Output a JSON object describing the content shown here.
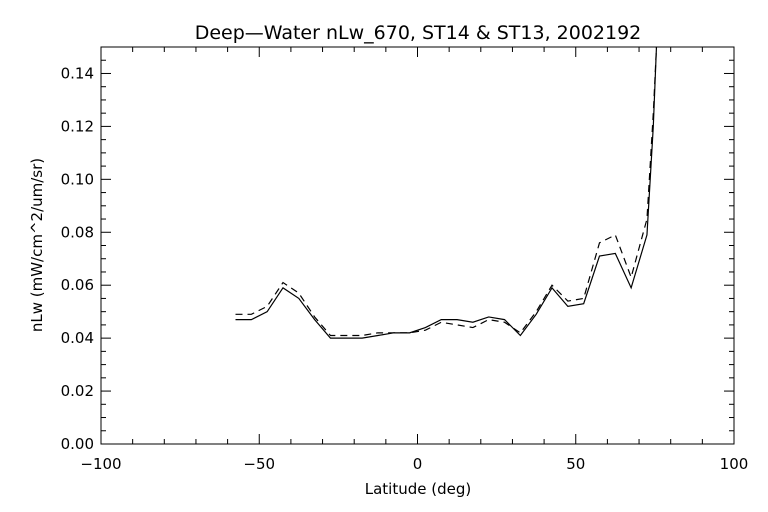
{
  "chart_data": {
    "type": "line",
    "title": "Deep—Water nLw_670, ST14 & ST13, 2002192",
    "xlabel": "Latitude (deg)",
    "ylabel": "nLw (mW/cm^2/um/sr)",
    "xlim": [
      -100,
      100
    ],
    "ylim": [
      0.0,
      0.15
    ],
    "xticks": [
      -100,
      -50,
      0,
      50,
      100
    ],
    "xtick_labels": [
      "−100",
      "−50",
      "0",
      "50",
      "100"
    ],
    "yticks": [
      0.0,
      0.02,
      0.04,
      0.06,
      0.08,
      0.1,
      0.12,
      0.14
    ],
    "ytick_labels": [
      "0.00",
      "0.02",
      "0.04",
      "0.06",
      "0.08",
      "0.10",
      "0.12",
      "0.14"
    ],
    "grid": false,
    "series": [
      {
        "style": "solid",
        "x": [
          -57.5,
          -52.5,
          -47.5,
          -42.5,
          -37.5,
          -32.5,
          -27.5,
          -22.5,
          -17.5,
          -12.5,
          -7.5,
          -2.5,
          2.5,
          7.5,
          12.5,
          17.5,
          22.5,
          27.5,
          32.5,
          37.5,
          42.5,
          47.5,
          52.5,
          57.5,
          62.5,
          67.5,
          72.5,
          74.5,
          75.5
        ],
        "y": [
          0.047,
          0.047,
          0.05,
          0.059,
          0.055,
          0.047,
          0.04,
          0.04,
          0.04,
          0.041,
          0.042,
          0.042,
          0.044,
          0.047,
          0.047,
          0.046,
          0.048,
          0.047,
          0.041,
          0.049,
          0.059,
          0.052,
          0.053,
          0.071,
          0.072,
          0.059,
          0.079,
          0.12,
          0.15
        ]
      },
      {
        "style": "dashed",
        "x": [
          -57.5,
          -52.5,
          -47.5,
          -42.5,
          -37.5,
          -32.5,
          -27.5,
          -22.5,
          -17.5,
          -12.5,
          -7.5,
          -2.5,
          2.5,
          7.5,
          12.5,
          17.5,
          22.5,
          27.5,
          32.5,
          37.5,
          42.5,
          47.5,
          52.5,
          57.5,
          62.5,
          67.5,
          72.5,
          74.5,
          75.5
        ],
        "y": [
          0.049,
          0.049,
          0.052,
          0.061,
          0.057,
          0.048,
          0.041,
          0.041,
          0.041,
          0.042,
          0.042,
          0.042,
          0.043,
          0.046,
          0.045,
          0.044,
          0.047,
          0.046,
          0.042,
          0.05,
          0.06,
          0.054,
          0.055,
          0.076,
          0.079,
          0.063,
          0.085,
          0.125,
          0.15
        ]
      }
    ]
  }
}
